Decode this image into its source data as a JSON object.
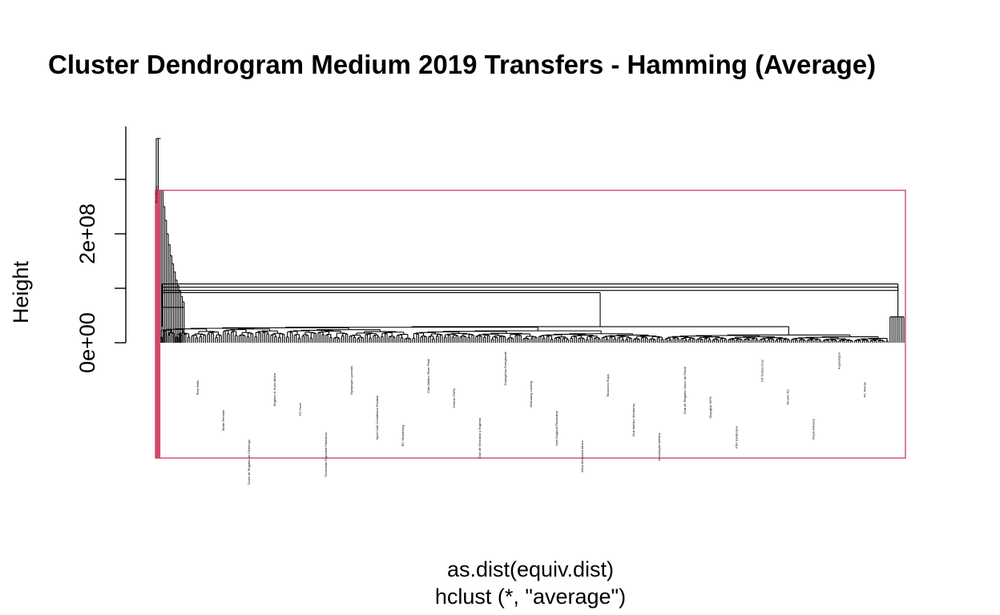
{
  "chart_data": {
    "type": "dendrogram",
    "title": "Cluster Dendrogram Medium 2019 Transfers - Hamming (Average)",
    "xlabel": "as.dist(equiv.dist)",
    "sub": "hclust (*, \"average\")",
    "ylabel": "Height",
    "yticks": [
      0,
      100000000,
      200000000,
      300000000
    ],
    "ytick_labels": [
      "0e+00",
      "",
      "2e+08",
      ""
    ],
    "ylim": [
      0,
      375000000
    ],
    "leaf_count": 380,
    "cluster_rect": {
      "color": "#D14A68",
      "cut_height": 280000000,
      "clusters": [
        {
          "from_leaf": 1,
          "to_leaf": 2
        },
        {
          "from_leaf": 3,
          "to_leaf": 380
        }
      ]
    },
    "merge_profile": {
      "root_height": 375000000,
      "left_chain_heights": [
        280000000,
        250000000,
        225000000,
        200000000,
        180000000,
        160000000,
        145000000,
        130000000,
        115000000,
        105000000,
        95000000,
        85000000,
        75000000,
        65000000
      ],
      "bridge_heights": [
        108000000,
        102000000,
        96000000,
        92000000
      ],
      "plateau_height": 20000000,
      "right_cluster_height": 95000000
    },
    "visible_leaf_labels": [
      "Real Madrid",
      "Real Betis",
      "Stade Rennais",
      "Clube de Regatas do Flamengo",
      "Brighton & Hove Albion",
      "FC Porto",
      "Sociedade Esportiva Palmeiras",
      "Olympique Lyonnais",
      "Sport Club Corinthians Paulista",
      "RC Strasbourg",
      "Club Atlético River Plate",
      "Grêmio FBPA",
      "Club de Gimnasia y Esgrima",
      "Guangzhou Evergrande",
      "Shandong Luneng",
      "New England Revolution",
      "West Bromwich Albion",
      "Tiburones Rojos",
      "Club Atlético Monterrey",
      "Associação Atlética",
      "Club de Regatas Vasco da Gama",
      "Shanghai SIPG",
      "PSV Eindhoven",
      "CD Godoy Cruz",
      "Toronto FC",
      "Royal Antwerp",
      "Kayserispor",
      "FC Twente"
    ]
  }
}
